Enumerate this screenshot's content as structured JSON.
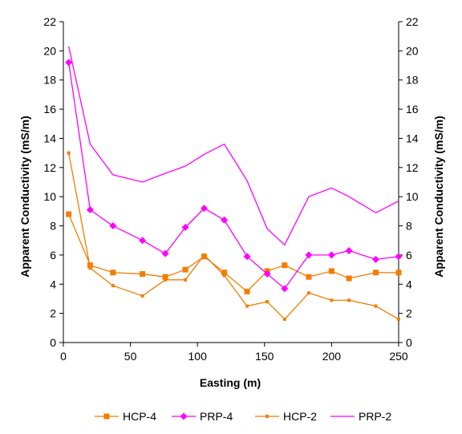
{
  "chart_data": {
    "type": "line",
    "xlabel": "Easting (m)",
    "ylabel": "Apparent Conductivity (mS/m)",
    "ylabel_right": "Apparent Conductivity (mS/m)",
    "xlim": [
      0,
      250
    ],
    "ylim": [
      0,
      22
    ],
    "x_ticks": [
      "0",
      "50",
      "100",
      "150",
      "200",
      "250"
    ],
    "y_ticks": [
      "0",
      "2",
      "4",
      "6",
      "8",
      "10",
      "12",
      "14",
      "16",
      "18",
      "20",
      "22"
    ],
    "grid": false,
    "legend_position": "bottom",
    "series": [
      {
        "name": "HCP-4",
        "color": "#F57C00",
        "marker": "square",
        "x": [
          4,
          20,
          37,
          59,
          76,
          91,
          105,
          120,
          137,
          152,
          165,
          183,
          200,
          213,
          233,
          250
        ],
        "y": [
          8.8,
          5.3,
          4.8,
          4.7,
          4.5,
          5.0,
          5.9,
          4.8,
          3.5,
          4.9,
          5.3,
          4.5,
          4.9,
          4.4,
          4.8,
          4.8
        ]
      },
      {
        "name": "PRP-4",
        "color": "#FF00FF",
        "marker": "diamond",
        "x": [
          4,
          20,
          37,
          59,
          76,
          91,
          105,
          120,
          137,
          152,
          165,
          183,
          200,
          213,
          233,
          250
        ],
        "y": [
          19.2,
          9.1,
          8.0,
          7.0,
          6.1,
          7.9,
          9.2,
          8.4,
          5.9,
          4.7,
          3.7,
          6.0,
          6.0,
          6.3,
          5.7,
          5.9
        ]
      },
      {
        "name": "HCP-2",
        "color": "#F57C00",
        "marker": "small-square",
        "x": [
          4,
          20,
          37,
          59,
          76,
          91,
          105,
          120,
          137,
          152,
          165,
          183,
          200,
          213,
          233,
          250
        ],
        "y": [
          13.0,
          5.1,
          3.9,
          3.2,
          4.3,
          4.3,
          6.0,
          4.6,
          2.5,
          2.8,
          1.6,
          3.4,
          2.9,
          2.9,
          2.5,
          1.6
        ]
      },
      {
        "name": "PRP-2",
        "color": "#FF00FF",
        "marker": "none",
        "x": [
          4,
          20,
          37,
          59,
          76,
          91,
          105,
          120,
          137,
          152,
          165,
          183,
          200,
          213,
          233,
          250
        ],
        "y": [
          20.3,
          13.6,
          11.5,
          11.0,
          11.6,
          12.1,
          12.9,
          13.6,
          11.1,
          7.8,
          6.7,
          10.0,
          10.6,
          10.0,
          8.9,
          9.7
        ]
      }
    ]
  }
}
